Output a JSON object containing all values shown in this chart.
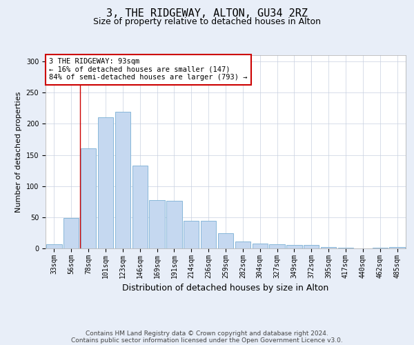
{
  "title": "3, THE RIDGEWAY, ALTON, GU34 2RZ",
  "subtitle": "Size of property relative to detached houses in Alton",
  "xlabel": "Distribution of detached houses by size in Alton",
  "ylabel": "Number of detached properties",
  "bar_labels": [
    "33sqm",
    "56sqm",
    "78sqm",
    "101sqm",
    "123sqm",
    "146sqm",
    "169sqm",
    "191sqm",
    "214sqm",
    "236sqm",
    "259sqm",
    "282sqm",
    "304sqm",
    "327sqm",
    "349sqm",
    "372sqm",
    "395sqm",
    "417sqm",
    "440sqm",
    "462sqm",
    "485sqm"
  ],
  "bar_values": [
    7,
    49,
    161,
    210,
    219,
    133,
    77,
    76,
    44,
    44,
    24,
    11,
    8,
    7,
    6,
    5,
    2,
    1,
    0,
    1,
    2
  ],
  "bar_color": "#c5d8f0",
  "bar_edge_color": "#7aafd4",
  "red_line_x": 1.5,
  "annotation_text": "3 THE RIDGEWAY: 93sqm\n← 16% of detached houses are smaller (147)\n84% of semi-detached houses are larger (793) →",
  "annotation_box_color": "#ffffff",
  "annotation_box_edge": "#cc0000",
  "footer_line1": "Contains HM Land Registry data © Crown copyright and database right 2024.",
  "footer_line2": "Contains public sector information licensed under the Open Government Licence v3.0.",
  "background_color": "#e8eef8",
  "plot_bg_color": "#ffffff",
  "ylim": [
    0,
    310
  ],
  "yticks": [
    0,
    50,
    100,
    150,
    200,
    250,
    300
  ],
  "grid_color": "#c8d0e0",
  "title_fontsize": 11,
  "subtitle_fontsize": 9,
  "xlabel_fontsize": 9,
  "ylabel_fontsize": 8,
  "tick_fontsize": 7,
  "footer_fontsize": 6.5,
  "annot_fontsize": 7.5
}
